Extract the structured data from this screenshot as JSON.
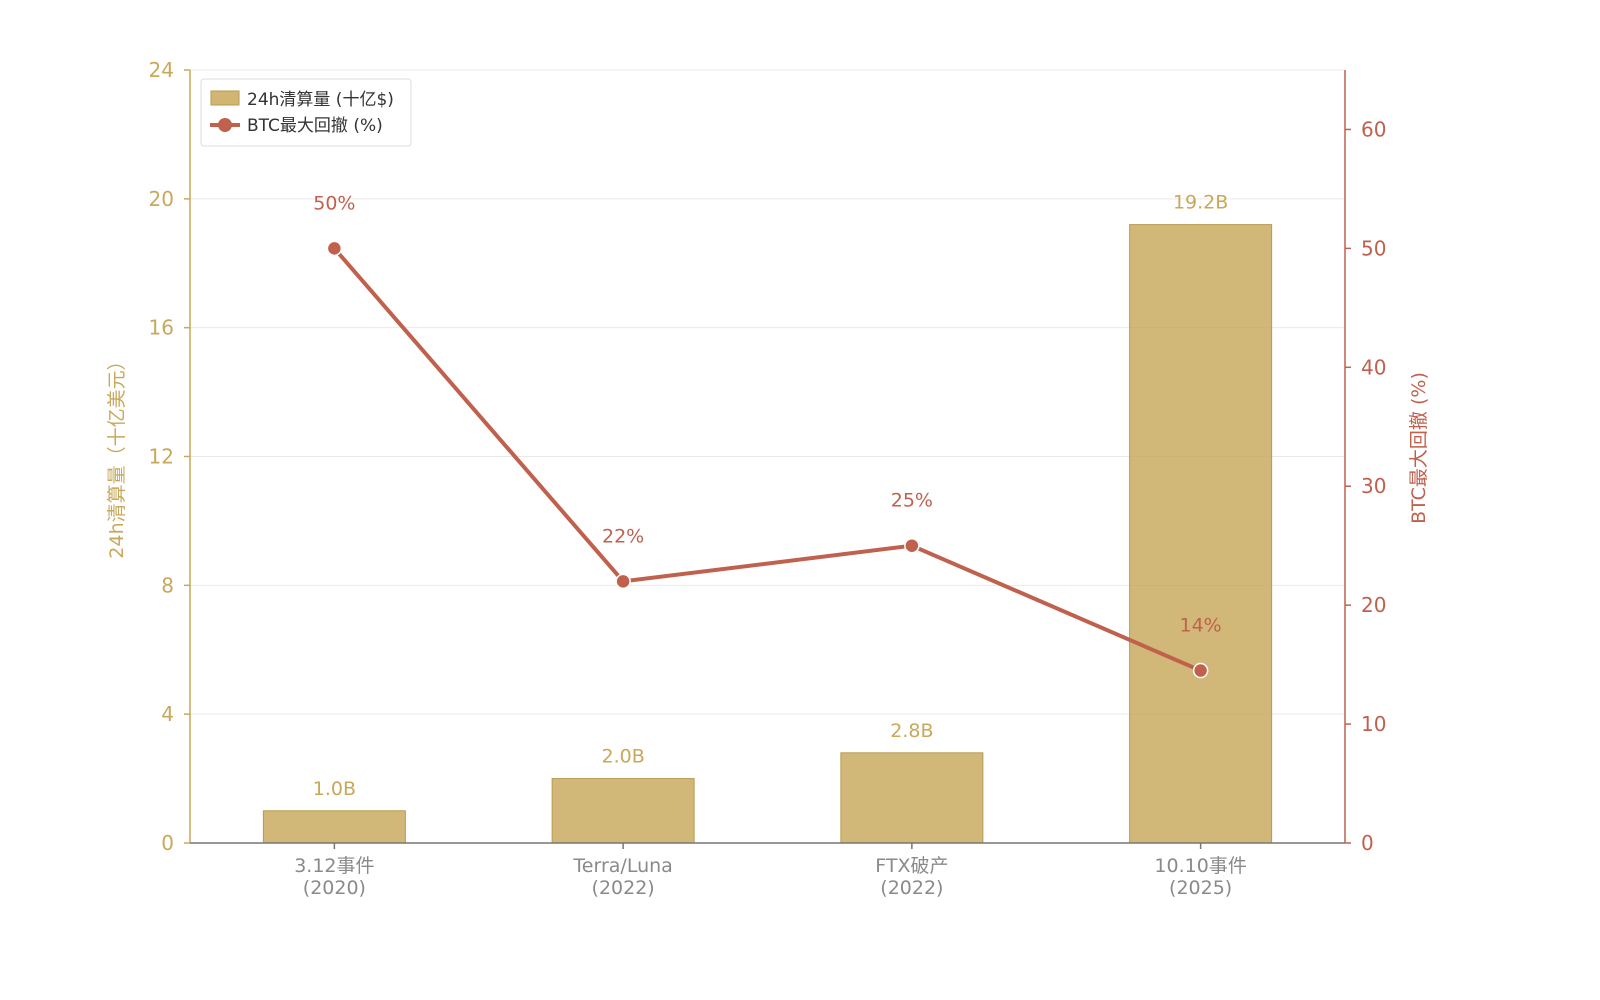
{
  "chart_data": {
    "type": "bar+line",
    "categories": [
      [
        "3.12事件",
        "(2020)"
      ],
      [
        "Terra/Luna",
        "(2022)"
      ],
      [
        "FTX破产",
        "(2022)"
      ],
      [
        "10.10事件",
        "(2025)"
      ]
    ],
    "series": [
      {
        "name": "24h清算量 (十亿$)",
        "type": "bar",
        "axis": "left",
        "values": [
          1.0,
          2.0,
          2.8,
          19.2
        ],
        "labels": [
          "1.0B",
          "2.0B",
          "2.8B",
          "19.2B"
        ],
        "color": "#c8a85a"
      },
      {
        "name": "BTC最大回撤 (%)",
        "type": "line",
        "axis": "right",
        "values": [
          50,
          22,
          25,
          14.5
        ],
        "labels": [
          "50%",
          "22%",
          "25%",
          "14%"
        ],
        "color": "#c0614e"
      }
    ],
    "y_left": {
      "label": "24h清算量（十亿美元）",
      "lim": [
        0,
        24
      ],
      "ticks": [
        0,
        4,
        8,
        12,
        16,
        20,
        24
      ]
    },
    "y_right": {
      "label": "BTC最大回撤 (%)",
      "lim": [
        0,
        65
      ],
      "ticks": [
        0,
        10,
        20,
        30,
        40,
        50,
        60
      ]
    },
    "grid": true,
    "legend": "top-left"
  }
}
